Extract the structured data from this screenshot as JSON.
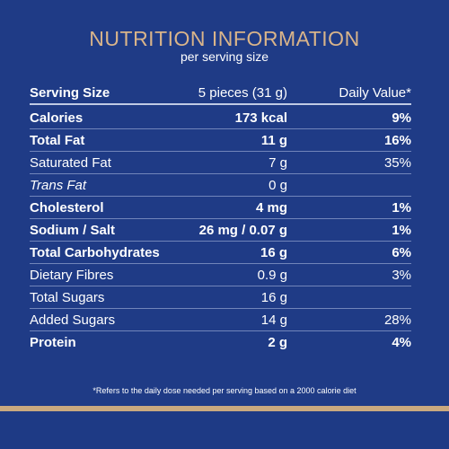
{
  "title": "NUTRITION INFORMATION",
  "subtitle": "per serving size",
  "header": {
    "name": "Serving Size",
    "amount": "5 pieces (31 g)",
    "dv": "Daily Value*"
  },
  "rows": [
    {
      "name": "Calories",
      "amount": "173 kcal",
      "dv": "9%",
      "bold": true
    },
    {
      "name": "Total Fat",
      "amount": "11 g",
      "dv": "16%",
      "bold": true
    },
    {
      "name": "Saturated Fat",
      "amount": "7 g",
      "dv": "35%",
      "bold": false
    },
    {
      "name": "Trans Fat",
      "amount": "0 g",
      "dv": "",
      "bold": false
    },
    {
      "name": "Cholesterol",
      "amount": "4 mg",
      "dv": "1%",
      "bold": true
    },
    {
      "name": "Sodium / Salt",
      "amount": "26 mg / 0.07 g",
      "dv": "1%",
      "bold": true
    },
    {
      "name": "Total Carbohydrates",
      "amount": "16 g",
      "dv": "6%",
      "bold": true
    },
    {
      "name": "Dietary Fibres",
      "amount": "0.9 g",
      "dv": "3%",
      "bold": false
    },
    {
      "name": "Total Sugars",
      "amount": "16 g",
      "dv": "",
      "bold": false
    },
    {
      "name": "Added Sugars",
      "amount": "14 g",
      "dv": "28%",
      "bold": false
    },
    {
      "name": "Protein",
      "amount": "2 g",
      "dv": "4%",
      "bold": true
    }
  ],
  "footnote": "*Refers to the daily dose needed per serving based on a 2000 calorie diet",
  "colors": {
    "background": "#1f3b86",
    "title": "#d9b48a",
    "band": "#c9a97f"
  }
}
